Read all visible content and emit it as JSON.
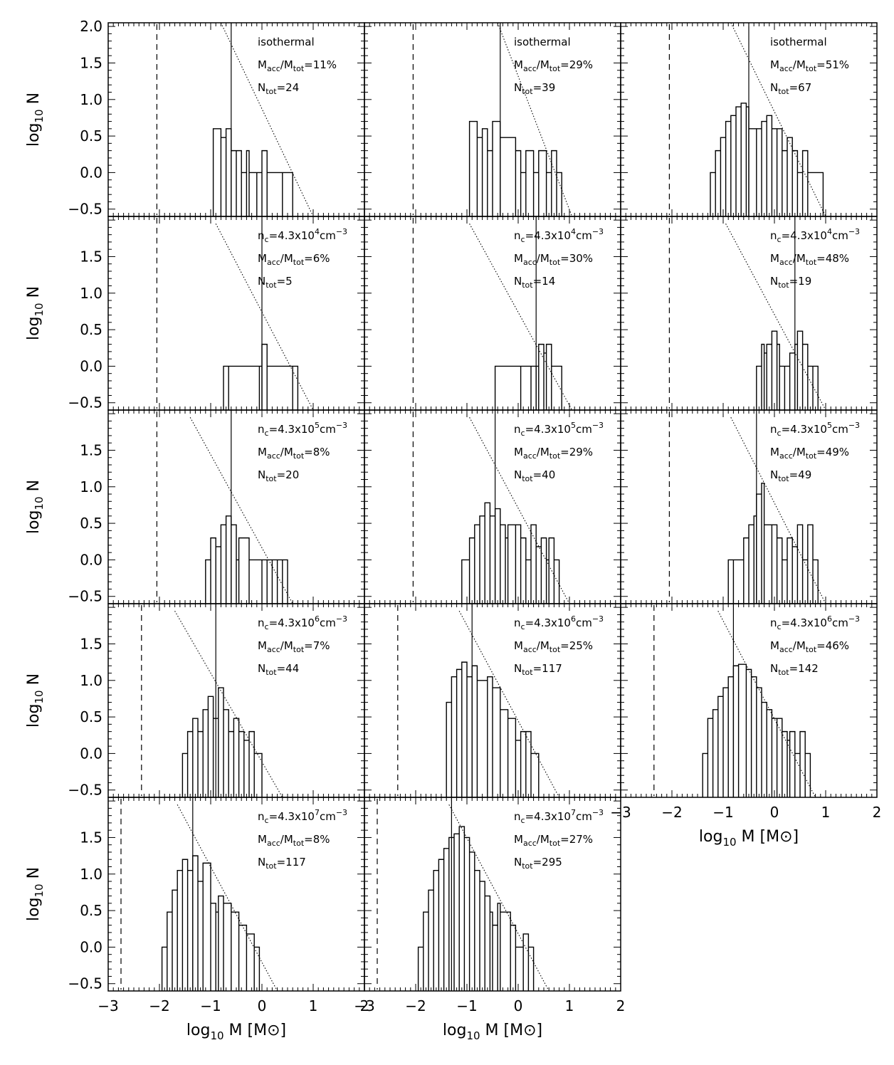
{
  "axes": {
    "xlabel": "log10 M [M⊙]",
    "ylabel": "log10 N",
    "xlim": [
      -3,
      2
    ],
    "ylim": [
      -0.6,
      2.05
    ],
    "xticks": [
      -3,
      -2,
      -1,
      0,
      1,
      2
    ],
    "xticklabels": [
      "−3",
      "−2",
      "−1",
      "0",
      "1",
      "2"
    ],
    "yticks_top_row": [
      -0.5,
      0.0,
      0.5,
      1.0,
      1.5,
      2.0
    ],
    "yticks": [
      -0.5,
      0.0,
      0.5,
      1.0,
      1.5
    ],
    "yticklabels": {
      "-0.5": "−0.5",
      "0": "0.0",
      "0.5": "0.5",
      "1": "1.0",
      "1.5": "1.5",
      "2": "2.0"
    }
  },
  "annotation_format": {
    "ratio_label": "M_acc/M_tot=",
    "count_label": "N_tot=",
    "density_prefix": "n_c=4.3x10",
    "density_unit": "cm^-3"
  },
  "chart_data": [
    {
      "type": "histogram",
      "row": 0,
      "col": 0,
      "label": "isothermal",
      "macc_mtot": "11%",
      "ntot": "24",
      "median": -0.6,
      "dashed": -2.05,
      "line": {
        "x1": -0.8,
        "y1": 2.05,
        "x2": 1.0,
        "y2": -0.6
      },
      "steps": [
        [
          -0.95,
          0.6
        ],
        [
          -0.8,
          0.48
        ],
        [
          -0.7,
          0.6
        ],
        [
          -0.6,
          0.3
        ],
        [
          -0.5,
          0.3
        ],
        [
          -0.4,
          0.0
        ],
        [
          -0.3,
          0.3
        ],
        [
          -0.25,
          0.0
        ],
        [
          -0.1,
          0.0
        ],
        [
          0.0,
          0.3
        ],
        [
          0.1,
          0.0
        ],
        [
          0.4,
          0.0
        ],
        [
          0.6,
          0.0
        ]
      ]
    },
    {
      "type": "histogram",
      "row": 0,
      "col": 1,
      "label": "isothermal",
      "macc_mtot": "29%",
      "ntot": "39",
      "median": -0.35,
      "dashed": -2.05,
      "line": {
        "x1": -0.4,
        "y1": 2.05,
        "x2": 1.05,
        "y2": -0.6
      },
      "steps": [
        [
          -0.95,
          0.7
        ],
        [
          -0.8,
          0.48
        ],
        [
          -0.7,
          0.6
        ],
        [
          -0.6,
          0.3
        ],
        [
          -0.5,
          0.7
        ],
        [
          -0.35,
          0.48
        ],
        [
          -0.05,
          0.3
        ],
        [
          0.05,
          0.0
        ],
        [
          0.15,
          0.3
        ],
        [
          0.3,
          0.0
        ],
        [
          0.4,
          0.3
        ],
        [
          0.55,
          0.0
        ],
        [
          0.65,
          0.3
        ],
        [
          0.75,
          0.0
        ],
        [
          0.85,
          0.0
        ]
      ]
    },
    {
      "type": "histogram",
      "row": 0,
      "col": 2,
      "label": "isothermal",
      "macc_mtot": "51%",
      "ntot": "67",
      "median": -0.5,
      "dashed": -2.05,
      "line": {
        "x1": -0.85,
        "y1": 2.05,
        "x2": 1.0,
        "y2": -0.6
      },
      "steps": [
        [
          -1.25,
          0.0
        ],
        [
          -1.15,
          0.3
        ],
        [
          -1.05,
          0.48
        ],
        [
          -0.95,
          0.7
        ],
        [
          -0.85,
          0.78
        ],
        [
          -0.75,
          0.9
        ],
        [
          -0.65,
          0.95
        ],
        [
          -0.55,
          0.9
        ],
        [
          -0.5,
          0.6
        ],
        [
          -0.35,
          0.6
        ],
        [
          -0.25,
          0.7
        ],
        [
          -0.15,
          0.78
        ],
        [
          -0.05,
          0.6
        ],
        [
          0.05,
          0.6
        ],
        [
          0.15,
          0.3
        ],
        [
          0.25,
          0.48
        ],
        [
          0.35,
          0.3
        ],
        [
          0.45,
          0.0
        ],
        [
          0.55,
          0.3
        ],
        [
          0.65,
          0.0
        ],
        [
          0.95,
          0.0
        ]
      ]
    },
    {
      "type": "histogram",
      "row": 1,
      "col": 0,
      "density_exp": "4",
      "macc_mtot": "6%",
      "ntot": "5",
      "median": 0.0,
      "dashed": -2.05,
      "line": {
        "x1": -0.9,
        "y1": 1.95,
        "x2": 1.0,
        "y2": -0.6
      },
      "steps": [
        [
          -0.75,
          0.0
        ],
        [
          -0.65,
          0.0
        ],
        [
          -0.05,
          0.0
        ],
        [
          0.0,
          0.3
        ],
        [
          0.1,
          0.0
        ],
        [
          0.6,
          0.0
        ],
        [
          0.7,
          0.0
        ]
      ]
    },
    {
      "type": "histogram",
      "row": 1,
      "col": 1,
      "density_exp": "4",
      "macc_mtot": "30%",
      "ntot": "14",
      "median": 0.35,
      "dashed": -2.05,
      "line": {
        "x1": -0.95,
        "y1": 1.95,
        "x2": 1.05,
        "y2": -0.6
      },
      "steps": [
        [
          -0.45,
          0.0
        ],
        [
          0.05,
          0.0
        ],
        [
          0.25,
          0.0
        ],
        [
          0.35,
          0.0
        ],
        [
          0.4,
          0.3
        ],
        [
          0.5,
          0.18
        ],
        [
          0.55,
          0.3
        ],
        [
          0.65,
          0.0
        ],
        [
          0.85,
          0.0
        ]
      ]
    },
    {
      "type": "histogram",
      "row": 1,
      "col": 2,
      "density_exp": "4",
      "macc_mtot": "48%",
      "ntot": "19",
      "median": 0.4,
      "dashed": -2.05,
      "line": {
        "x1": -0.95,
        "y1": 1.95,
        "x2": 1.0,
        "y2": -0.6
      },
      "steps": [
        [
          -0.35,
          0.0
        ],
        [
          -0.25,
          0.3
        ],
        [
          -0.2,
          0.18
        ],
        [
          -0.15,
          0.3
        ],
        [
          -0.05,
          0.48
        ],
        [
          0.05,
          0.3
        ],
        [
          0.1,
          0.0
        ],
        [
          0.2,
          0.0
        ],
        [
          0.3,
          0.18
        ],
        [
          0.4,
          0.3
        ],
        [
          0.45,
          0.48
        ],
        [
          0.55,
          0.3
        ],
        [
          0.65,
          0.0
        ],
        [
          0.75,
          0.0
        ],
        [
          0.85,
          0.0
        ]
      ]
    },
    {
      "type": "histogram",
      "row": 2,
      "col": 0,
      "density_exp": "5",
      "macc_mtot": "8%",
      "ntot": "20",
      "median": -0.6,
      "dashed": -2.05,
      "line": {
        "x1": -1.4,
        "y1": 1.95,
        "x2": 0.6,
        "y2": -0.6
      },
      "steps": [
        [
          -1.1,
          0.0
        ],
        [
          -1.0,
          0.3
        ],
        [
          -0.9,
          0.18
        ],
        [
          -0.8,
          0.48
        ],
        [
          -0.7,
          0.6
        ],
        [
          -0.6,
          0.48
        ],
        [
          -0.5,
          0.0
        ],
        [
          -0.45,
          0.3
        ],
        [
          -0.25,
          0.0
        ],
        [
          0.0,
          0.0
        ],
        [
          0.1,
          0.0
        ],
        [
          0.2,
          0.0
        ],
        [
          0.3,
          0.0
        ],
        [
          0.4,
          0.0
        ],
        [
          0.5,
          0.0
        ]
      ]
    },
    {
      "type": "histogram",
      "row": 2,
      "col": 1,
      "density_exp": "5",
      "macc_mtot": "29%",
      "ntot": "40",
      "median": -0.45,
      "dashed": -2.05,
      "line": {
        "x1": -0.95,
        "y1": 1.95,
        "x2": 1.0,
        "y2": -0.6
      },
      "steps": [
        [
          -1.1,
          0.0
        ],
        [
          -0.95,
          0.3
        ],
        [
          -0.85,
          0.48
        ],
        [
          -0.75,
          0.6
        ],
        [
          -0.65,
          0.78
        ],
        [
          -0.55,
          0.6
        ],
        [
          -0.45,
          0.7
        ],
        [
          -0.35,
          0.48
        ],
        [
          -0.25,
          0.3
        ],
        [
          -0.2,
          0.48
        ],
        [
          -0.05,
          0.48
        ],
        [
          0.05,
          0.3
        ],
        [
          0.15,
          0.0
        ],
        [
          0.25,
          0.48
        ],
        [
          0.35,
          0.18
        ],
        [
          0.45,
          0.3
        ],
        [
          0.55,
          0.0
        ],
        [
          0.6,
          0.3
        ],
        [
          0.7,
          0.0
        ],
        [
          0.8,
          0.0
        ]
      ]
    },
    {
      "type": "histogram",
      "row": 2,
      "col": 2,
      "density_exp": "5",
      "macc_mtot": "49%",
      "ntot": "49",
      "median": -0.35,
      "dashed": -2.05,
      "line": {
        "x1": -0.85,
        "y1": 1.95,
        "x2": 1.0,
        "y2": -0.6
      },
      "steps": [
        [
          -0.9,
          0.0
        ],
        [
          -0.8,
          0.0
        ],
        [
          -0.6,
          0.3
        ],
        [
          -0.5,
          0.48
        ],
        [
          -0.4,
          0.6
        ],
        [
          -0.35,
          0.9
        ],
        [
          -0.25,
          1.05
        ],
        [
          -0.2,
          0.48
        ],
        [
          -0.05,
          0.48
        ],
        [
          0.05,
          0.3
        ],
        [
          0.15,
          0.0
        ],
        [
          0.25,
          0.3
        ],
        [
          0.35,
          0.18
        ],
        [
          0.45,
          0.48
        ],
        [
          0.55,
          0.0
        ],
        [
          0.65,
          0.48
        ],
        [
          0.75,
          0.0
        ],
        [
          0.85,
          0.0
        ]
      ]
    },
    {
      "type": "histogram",
      "row": 3,
      "col": 0,
      "density_exp": "6",
      "macc_mtot": "7%",
      "ntot": "44",
      "median": -0.9,
      "dashed": -2.35,
      "line": {
        "x1": -1.7,
        "y1": 1.95,
        "x2": 0.4,
        "y2": -0.6
      },
      "steps": [
        [
          -1.55,
          0.0
        ],
        [
          -1.45,
          0.3
        ],
        [
          -1.35,
          0.48
        ],
        [
          -1.25,
          0.3
        ],
        [
          -1.15,
          0.6
        ],
        [
          -1.05,
          0.78
        ],
        [
          -0.95,
          0.48
        ],
        [
          -0.85,
          0.9
        ],
        [
          -0.75,
          0.6
        ],
        [
          -0.65,
          0.3
        ],
        [
          -0.55,
          0.48
        ],
        [
          -0.45,
          0.3
        ],
        [
          -0.35,
          0.18
        ],
        [
          -0.25,
          0.3
        ],
        [
          -0.15,
          0.0
        ],
        [
          0.0,
          0.0
        ]
      ]
    },
    {
      "type": "histogram",
      "row": 3,
      "col": 1,
      "density_exp": "6",
      "macc_mtot": "25%",
      "ntot": "117",
      "median": -0.9,
      "dashed": -2.35,
      "line": {
        "x1": -1.15,
        "y1": 1.95,
        "x2": 0.8,
        "y2": -0.6
      },
      "steps": [
        [
          -1.4,
          0.7
        ],
        [
          -1.3,
          1.05
        ],
        [
          -1.2,
          1.15
        ],
        [
          -1.1,
          1.25
        ],
        [
          -1.0,
          1.05
        ],
        [
          -0.9,
          1.2
        ],
        [
          -0.8,
          1.0
        ],
        [
          -0.6,
          1.05
        ],
        [
          -0.5,
          0.9
        ],
        [
          -0.35,
          0.6
        ],
        [
          -0.2,
          0.48
        ],
        [
          -0.05,
          0.18
        ],
        [
          0.05,
          0.3
        ],
        [
          0.15,
          0.3
        ],
        [
          0.25,
          0.0
        ],
        [
          0.4,
          0.0
        ]
      ]
    },
    {
      "type": "histogram",
      "row": 3,
      "col": 2,
      "density_exp": "6",
      "macc_mtot": "46%",
      "ntot": "142",
      "median": -0.8,
      "dashed": -2.35,
      "line": {
        "x1": -1.1,
        "y1": 1.95,
        "x2": 0.8,
        "y2": -0.6
      },
      "steps": [
        [
          -1.4,
          0.0
        ],
        [
          -1.3,
          0.48
        ],
        [
          -1.2,
          0.6
        ],
        [
          -1.1,
          0.78
        ],
        [
          -1.0,
          0.9
        ],
        [
          -0.9,
          1.05
        ],
        [
          -0.8,
          1.2
        ],
        [
          -0.7,
          1.22
        ],
        [
          -0.55,
          1.15
        ],
        [
          -0.45,
          1.05
        ],
        [
          -0.35,
          0.9
        ],
        [
          -0.25,
          0.7
        ],
        [
          -0.15,
          0.6
        ],
        [
          -0.05,
          0.48
        ],
        [
          0.05,
          0.48
        ],
        [
          0.15,
          0.3
        ],
        [
          0.25,
          0.18
        ],
        [
          0.3,
          0.3
        ],
        [
          0.4,
          0.0
        ],
        [
          0.5,
          0.3
        ],
        [
          0.6,
          0.0
        ],
        [
          0.7,
          0.0
        ]
      ]
    },
    {
      "type": "histogram",
      "row": 4,
      "col": 0,
      "density_exp": "7",
      "macc_mtot": "8%",
      "ntot": "117",
      "median": -1.35,
      "dashed": -2.75,
      "line": {
        "x1": -1.65,
        "y1": 1.95,
        "x2": 0.3,
        "y2": -0.6
      },
      "steps": [
        [
          -1.95,
          0.0
        ],
        [
          -1.85,
          0.48
        ],
        [
          -1.75,
          0.78
        ],
        [
          -1.65,
          1.05
        ],
        [
          -1.55,
          1.2
        ],
        [
          -1.45,
          1.05
        ],
        [
          -1.35,
          1.25
        ],
        [
          -1.25,
          0.9
        ],
        [
          -1.15,
          1.15
        ],
        [
          -1.0,
          0.6
        ],
        [
          -0.9,
          0.48
        ],
        [
          -0.85,
          0.7
        ],
        [
          -0.75,
          0.6
        ],
        [
          -0.6,
          0.48
        ],
        [
          -0.45,
          0.3
        ],
        [
          -0.3,
          0.18
        ],
        [
          -0.15,
          0.0
        ],
        [
          -0.05,
          0.0
        ]
      ]
    },
    {
      "type": "histogram",
      "row": 4,
      "col": 1,
      "density_exp": "7",
      "macc_mtot": "27%",
      "ntot": "295",
      "median": -1.3,
      "dashed": -2.75,
      "line": {
        "x1": -1.35,
        "y1": 1.95,
        "x2": 0.6,
        "y2": -0.6
      },
      "steps": [
        [
          -1.95,
          0.0
        ],
        [
          -1.85,
          0.48
        ],
        [
          -1.75,
          0.78
        ],
        [
          -1.65,
          1.05
        ],
        [
          -1.55,
          1.2
        ],
        [
          -1.45,
          1.35
        ],
        [
          -1.35,
          1.5
        ],
        [
          -1.25,
          1.55
        ],
        [
          -1.15,
          1.65
        ],
        [
          -1.05,
          1.5
        ],
        [
          -0.95,
          1.3
        ],
        [
          -0.85,
          1.05
        ],
        [
          -0.75,
          0.9
        ],
        [
          -0.65,
          0.7
        ],
        [
          -0.55,
          0.48
        ],
        [
          -0.5,
          0.3
        ],
        [
          -0.4,
          0.6
        ],
        [
          -0.35,
          0.48
        ],
        [
          -0.15,
          0.3
        ],
        [
          -0.05,
          0.0
        ],
        [
          0.1,
          0.18
        ],
        [
          0.2,
          0.0
        ],
        [
          0.3,
          0.0
        ]
      ]
    }
  ]
}
